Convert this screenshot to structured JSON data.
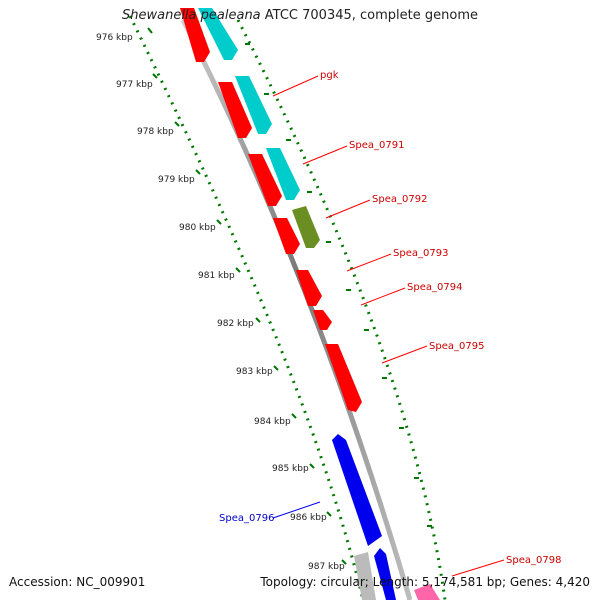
{
  "title": {
    "organism": "Shewanella pealeana",
    "rest": " ATCC 700345, complete genome"
  },
  "footer": {
    "accession": "Accession: NC_009901",
    "topology": "Topology: circular; Length: 5,174,581 bp; Genes: 4,420"
  },
  "ticks": [
    "976 kbp",
    "977 kbp",
    "978 kbp",
    "979 kbp",
    "980 kbp",
    "981 kbp",
    "982 kbp",
    "983 kbp",
    "984 kbp",
    "985 kbp",
    "986 kbp",
    "987 kbp"
  ],
  "gene_labels": [
    "pgk",
    "Spea_0791",
    "Spea_0792",
    "Spea_0793",
    "Spea_0794",
    "Spea_0795",
    "Spea_0796",
    "Spea_0798"
  ],
  "colors": {
    "red": "#ff0000",
    "cyan": "#00cccc",
    "olive": "#6b8e23",
    "blue": "#0000ee",
    "gray": "#bbbbbb",
    "pink": "#ff66aa",
    "backbone": "#888888",
    "tick_green": "#007700"
  }
}
